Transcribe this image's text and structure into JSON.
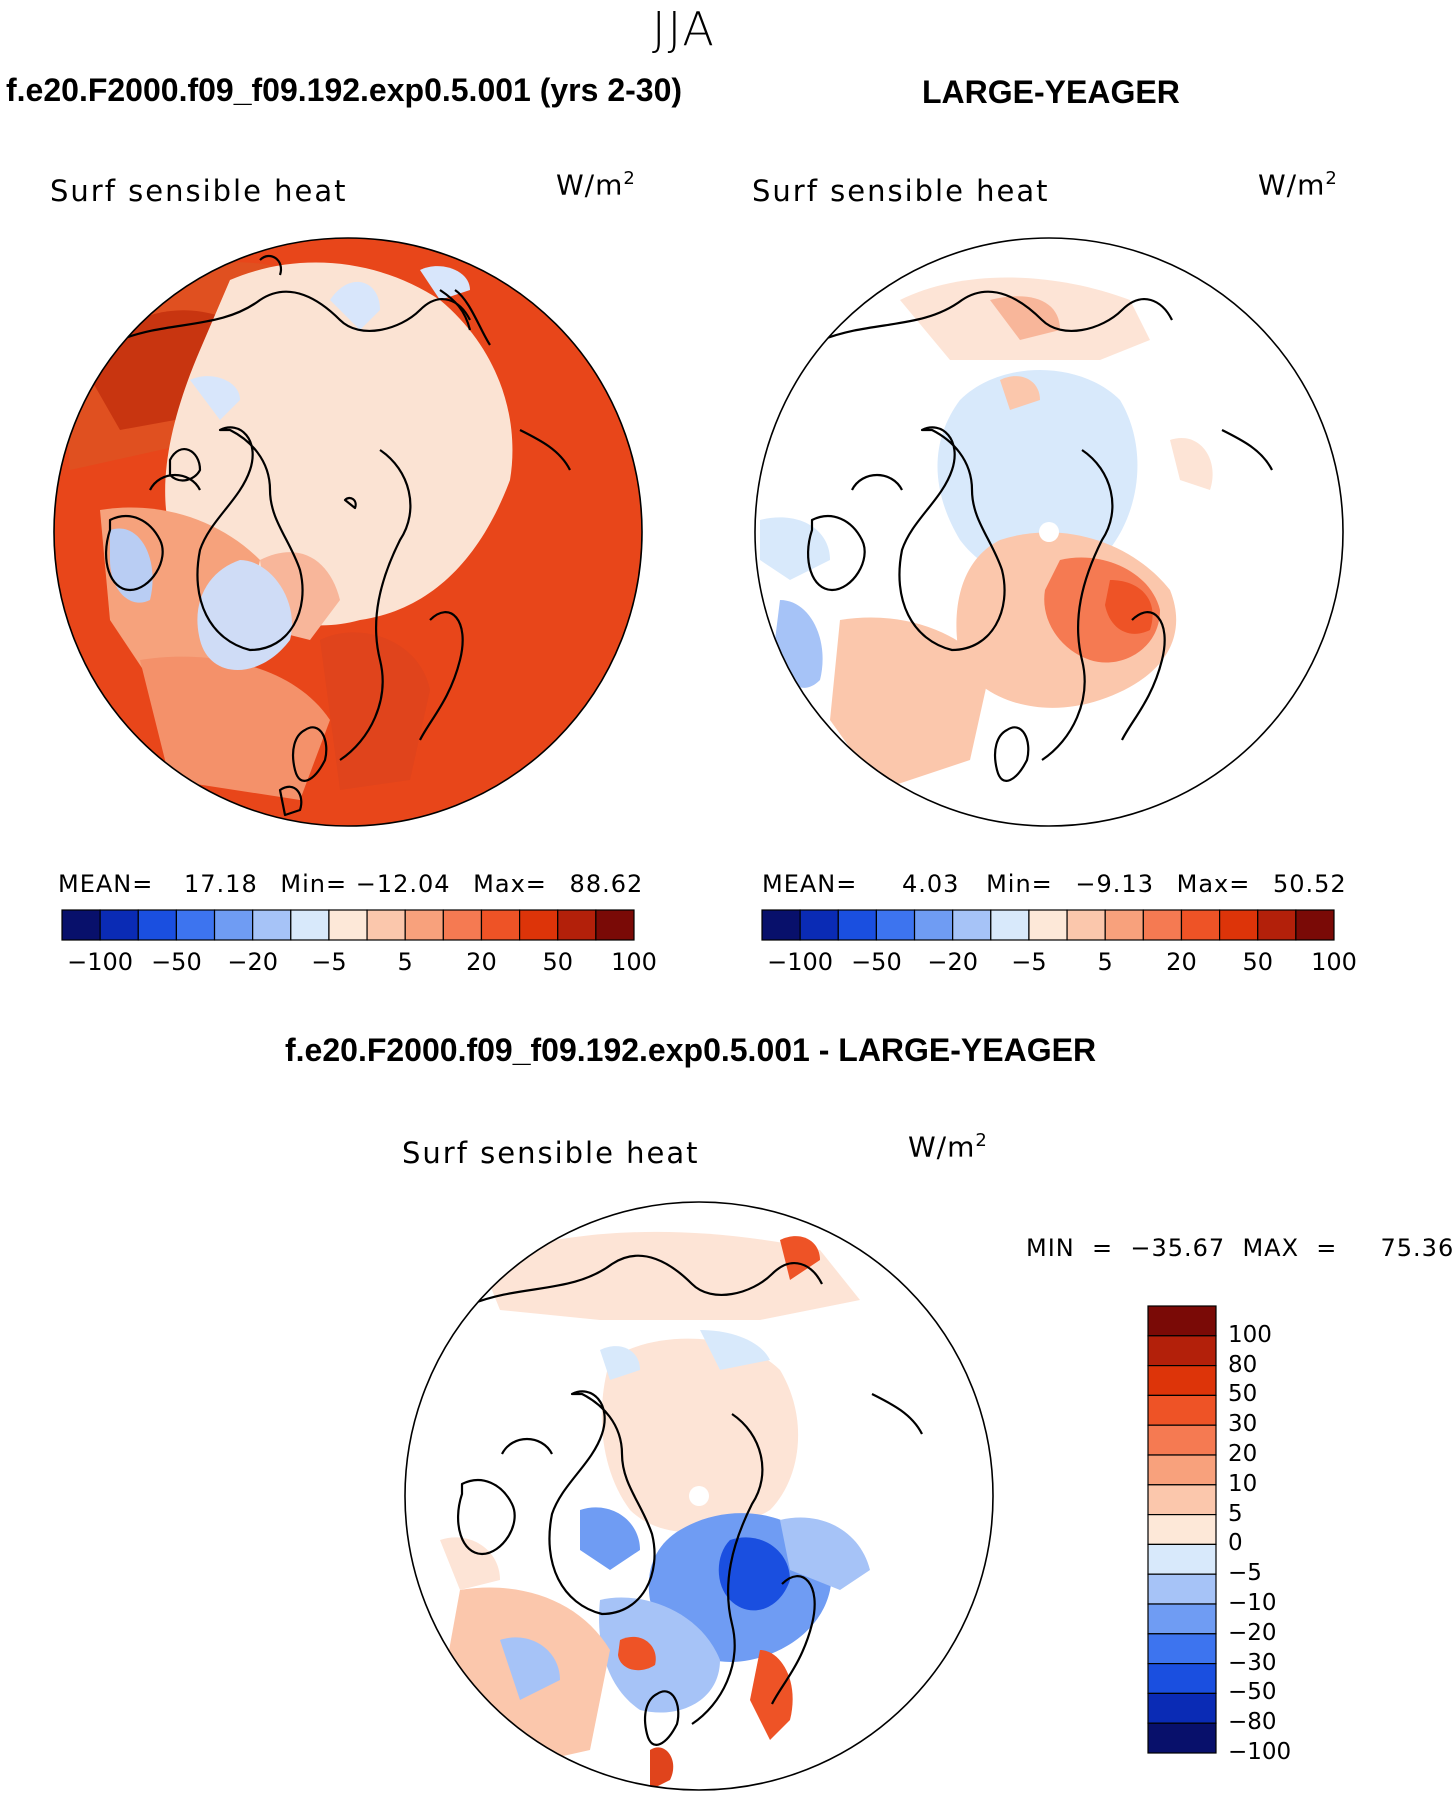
{
  "header": {
    "season": "JJA"
  },
  "panels": [
    {
      "title": "f.e20.F2000.f09_f09.192.exp0.5.001 (yrs 2-30)",
      "variable": "Surf  sensible  heat",
      "units": "W/m",
      "units_exp": "2",
      "stats": {
        "mean_label": "MEAN=",
        "mean": "17.18",
        "min_label": "Min=",
        "min": "−12.04",
        "max_label": "Max=",
        "max": "88.62"
      }
    },
    {
      "title": "LARGE-YEAGER",
      "variable": "Surf  sensible  heat",
      "units": "W/m",
      "units_exp": "2",
      "stats": {
        "mean_label": "MEAN=",
        "mean": "4.03",
        "min_label": "Min=",
        "min": "−9.13",
        "max_label": "Max=",
        "max": "50.52"
      }
    },
    {
      "title": "f.e20.F2000.f09_f09.192.exp0.5.001 - LARGE-YEAGER",
      "variable": "Surf  sensible  heat",
      "units": "W/m",
      "units_exp": "2",
      "stats_text": "MIN  =  −35.67  MAX  =     75.36"
    }
  ],
  "colorbar_h": {
    "colors": [
      "#08106b",
      "#0a2bb5",
      "#1a4fe0",
      "#3d74ef",
      "#6f9cf3",
      "#a6c3f7",
      "#d8e9fb",
      "#fde8d8",
      "#fbc7ac",
      "#f8a17c",
      "#f57a52",
      "#ee5326",
      "#dd3409",
      "#b3200a",
      "#7a0a06"
    ],
    "ticks": [
      "−100",
      "−50",
      "−20",
      "−5",
      "5",
      "20",
      "50",
      "100"
    ]
  },
  "colorbar_v": {
    "colors_top_down": [
      "#7a0a06",
      "#b3200a",
      "#dd3409",
      "#ee5326",
      "#f57a52",
      "#f8a17c",
      "#fbc7ac",
      "#fde8d8",
      "#d8e9fb",
      "#a6c3f7",
      "#6f9cf3",
      "#3d74ef",
      "#1a4fe0",
      "#0a2bb5",
      "#08106b"
    ],
    "ticks": [
      "100",
      "80",
      "50",
      "30",
      "20",
      "10",
      "5",
      "0",
      "−5",
      "−10",
      "−20",
      "−30",
      "−50",
      "−80",
      "−100"
    ]
  }
}
